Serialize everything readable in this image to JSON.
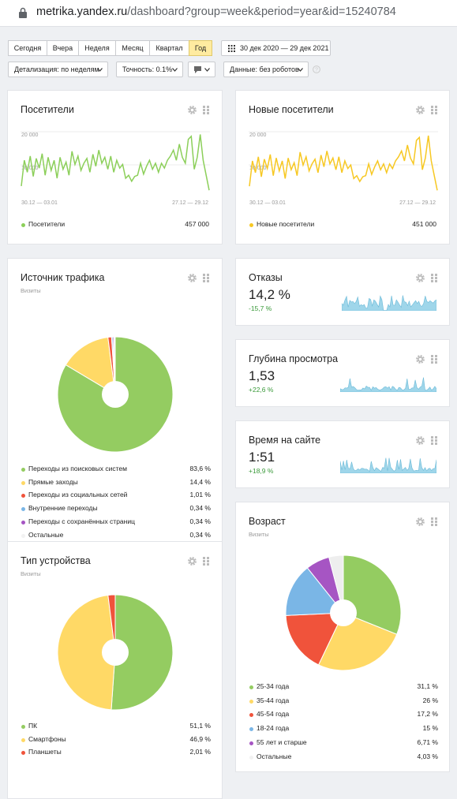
{
  "browser": {
    "url_host": "metrika.yandex.ru",
    "url_path": "/dashboard?group=week&period=year&id=15240784"
  },
  "toolbar": {
    "periods": [
      "Сегодня",
      "Вчера",
      "Неделя",
      "Месяц",
      "Квартал",
      "Год"
    ],
    "selected_period": "Год",
    "date_range": "30 дек 2020 — 29 дек 2021",
    "detail": "Детализация: по неделям",
    "accuracy": "Точность: 0.1%",
    "data": "Данные: без роботов"
  },
  "visitors": {
    "title": "Посетители",
    "y_ticks": [
      "20 000",
      "10 000"
    ],
    "x_left": "30.12 — 03.01",
    "x_right": "27.12 — 29.12",
    "legend_label": "Посетители",
    "legend_value": "457 000",
    "color": "#8ccf5a"
  },
  "new_visitors": {
    "title": "Новые посетители",
    "y_ticks": [
      "20 000",
      "10 000"
    ],
    "x_left": "30.12 — 03.01",
    "x_right": "27.12 — 29.12",
    "legend_label": "Новые посетители",
    "legend_value": "451 000",
    "color": "#f7c823"
  },
  "traffic": {
    "title": "Источник трафика",
    "subtitle": "Визиты",
    "items": [
      {
        "label": "Переходы из поисковых систем",
        "value": "83,6 %",
        "color": "#94cc61"
      },
      {
        "label": "Прямые заходы",
        "value": "14,4 %",
        "color": "#ffd966"
      },
      {
        "label": "Переходы из социальных сетей",
        "value": "1,01 %",
        "color": "#f0533b"
      },
      {
        "label": "Внутренние переходы",
        "value": "0,34 %",
        "color": "#7ab6e6"
      },
      {
        "label": "Переходы с сохранённых страниц",
        "value": "0,34 %",
        "color": "#a655c3"
      },
      {
        "label": "Остальные",
        "value": "0,34 %",
        "color": "#eeeeee"
      }
    ]
  },
  "bounces": {
    "title": "Отказы",
    "value": "14,2 %",
    "delta": "-15,7 %",
    "delta_color": "#3a9a3a"
  },
  "depth": {
    "title": "Глубина просмотра",
    "value": "1,53",
    "delta": "+22,6 %",
    "delta_color": "#3a9a3a"
  },
  "time": {
    "title": "Время на сайте",
    "value": "1:51",
    "delta": "+18,9 %",
    "delta_color": "#3a9a3a"
  },
  "device": {
    "title": "Тип устройства",
    "subtitle": "Визиты",
    "items": [
      {
        "label": "ПК",
        "value": "51,1 %",
        "color": "#94cc61"
      },
      {
        "label": "Смартфоны",
        "value": "46,9 %",
        "color": "#ffd966"
      },
      {
        "label": "Планшеты",
        "value": "2,01 %",
        "color": "#f0533b"
      }
    ]
  },
  "age": {
    "title": "Возраст",
    "subtitle": "Визиты",
    "items": [
      {
        "label": "25-34 года",
        "value": "31,1 %",
        "color": "#94cc61"
      },
      {
        "label": "35-44 года",
        "value": "26 %",
        "color": "#ffd966"
      },
      {
        "label": "45-54 года",
        "value": "17,2 %",
        "color": "#f0533b"
      },
      {
        "label": "18-24 года",
        "value": "15 %",
        "color": "#7ab6e6"
      },
      {
        "label": "55 лет и старше",
        "value": "6,71 %",
        "color": "#a655c3"
      },
      {
        "label": "Остальные",
        "value": "4,03 %",
        "color": "#eeeeee"
      }
    ]
  },
  "icons": {
    "gear": "gear-icon",
    "grip": "drag-handle-icon",
    "calendar": "calendar-icon",
    "comment": "comment-icon",
    "help": "help-icon",
    "lock": "lock-icon"
  }
}
